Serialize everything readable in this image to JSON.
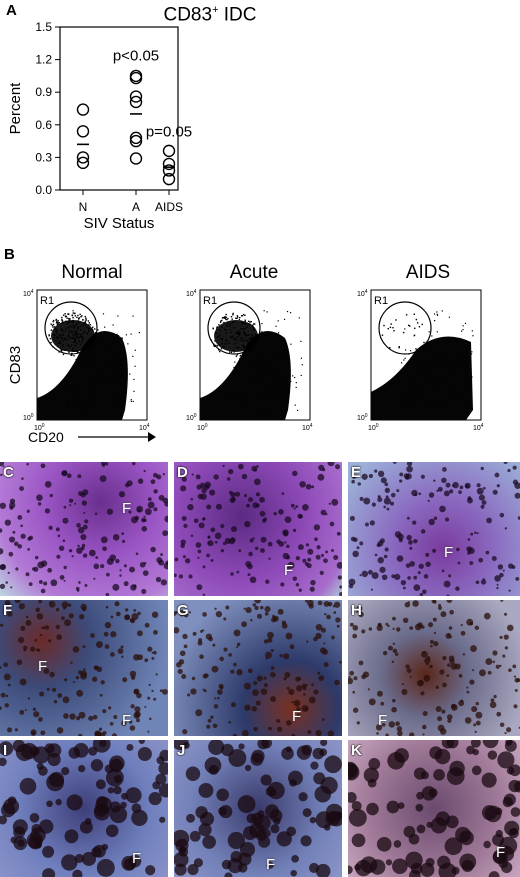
{
  "panel_a": {
    "letter": "A",
    "title_main": "CD83",
    "title_sup": "+",
    "title_rest": " IDC"
  },
  "chart_data": {
    "type": "scatter",
    "title": "CD83+ IDC",
    "xlabel": "SIV Status",
    "ylabel": "Percent",
    "categories": [
      "N",
      "A",
      "AIDS"
    ],
    "ylim": [
      0.0,
      1.5
    ],
    "yticks": [
      "0.0",
      "0.3",
      "0.6",
      "0.9",
      "1.2",
      "1.5"
    ],
    "series": [
      {
        "category": "N",
        "points": [
          0.74,
          0.54,
          0.3,
          0.25
        ],
        "mean": 0.42
      },
      {
        "category": "A",
        "points": [
          1.05,
          1.03,
          0.86,
          0.81,
          0.48,
          0.45,
          0.29
        ],
        "mean": 0.7
      },
      {
        "category": "AIDS",
        "points": [
          0.36,
          0.24,
          0.18,
          0.1
        ],
        "mean": 0.21
      }
    ],
    "annotations": [
      {
        "text": "p<0.05",
        "category": "A",
        "y": 1.24
      },
      {
        "text": "p=0.05",
        "category": "AIDS",
        "y": 0.54
      }
    ]
  },
  "panel_b": {
    "letter": "B",
    "titles": [
      "Normal",
      "Acute",
      "AIDS"
    ],
    "gate_label": "R1",
    "y_axis_label": "CD83",
    "x_axis_label": "CD20",
    "tick_low": "10",
    "tick_low_exp": "0",
    "tick_high": "10",
    "tick_high_exp": "4"
  },
  "micrographs": {
    "row1": [
      {
        "letter": "C",
        "f": [
          "F"
        ]
      },
      {
        "letter": "D",
        "f": [
          "F"
        ]
      },
      {
        "letter": "E",
        "f": [
          "F"
        ]
      }
    ],
    "row2": [
      {
        "letter": "F",
        "f": [
          "F",
          "F"
        ]
      },
      {
        "letter": "G",
        "f": [
          "F"
        ]
      },
      {
        "letter": "H",
        "f": [
          "F"
        ]
      }
    ],
    "row3": [
      {
        "letter": "I",
        "f": [
          "F"
        ]
      },
      {
        "letter": "J",
        "f": [
          "F"
        ]
      },
      {
        "letter": "K",
        "f": [
          "F"
        ]
      }
    ]
  },
  "colors": {
    "pas_purple": "#8a3fb8",
    "ihc_blue": "#6d7fb0",
    "dab_brown": "#5a2a1a"
  }
}
